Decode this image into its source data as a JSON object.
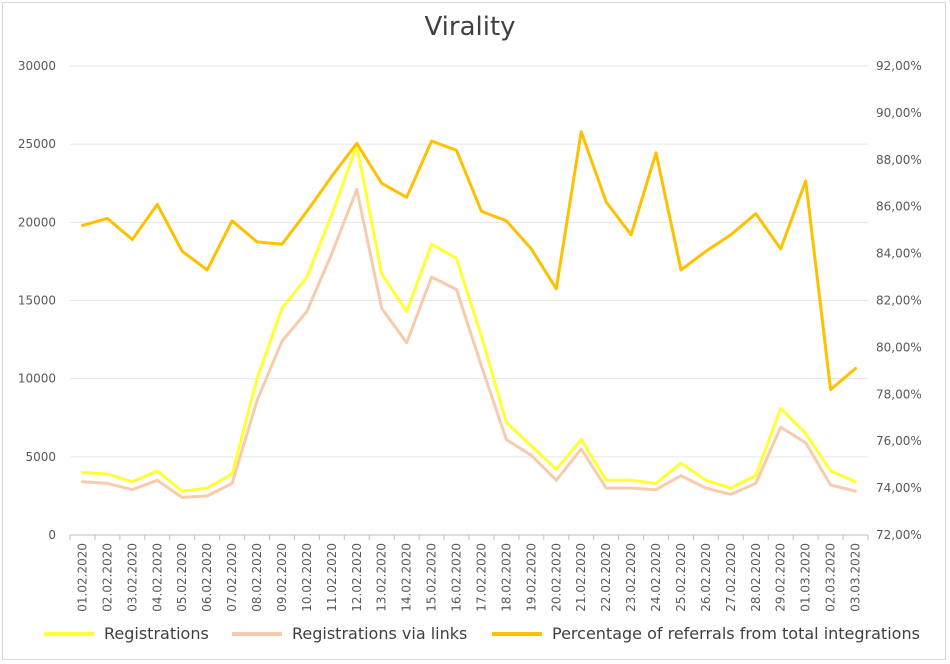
{
  "chart_data": {
    "type": "line",
    "title": "Virality",
    "categories": [
      "01.02.2020",
      "02.02.2020",
      "03.02.2020",
      "04.02.2020",
      "05.02.2020",
      "06.02.2020",
      "07.02.2020",
      "08.02.2020",
      "09.02.2020",
      "10.02.2020",
      "11.02.2020",
      "12.02.2020",
      "13.02.2020",
      "14.02.2020",
      "15.02.2020",
      "16.02.2020",
      "17.02.2020",
      "18.02.2020",
      "19.02.2020",
      "20.02.2020",
      "21.02.2020",
      "22.02.2020",
      "23.02.2020",
      "24.02.2020",
      "25.02.2020",
      "26.02.2020",
      "27.02.2020",
      "28.02.2020",
      "29.02.2020",
      "01.03.2020",
      "02.03.2020",
      "03.03.2020"
    ],
    "left_axis": {
      "min": 0,
      "max": 30000,
      "ticks": [
        "0",
        "5000",
        "10000",
        "15000",
        "20000",
        "25000",
        "30000"
      ]
    },
    "right_axis": {
      "min": 72,
      "max": 92,
      "unit": "%",
      "ticks": [
        "72,00%",
        "74,00%",
        "76,00%",
        "78,00%",
        "80,00%",
        "82,00%",
        "84,00%",
        "86,00%",
        "88,00%",
        "90,00%",
        "92,00%"
      ]
    },
    "grid": "horizontal",
    "legend_position": "bottom",
    "series": [
      {
        "name": "Registrations",
        "axis": "left",
        "color": "#ffff33",
        "values": [
          4000,
          3900,
          3400,
          4100,
          2800,
          3000,
          3900,
          10000,
          14500,
          16500,
          20500,
          24900,
          16700,
          14300,
          18600,
          17700,
          12700,
          7200,
          5700,
          4200,
          6100,
          3500,
          3500,
          3300,
          4600,
          3500,
          3000,
          3800,
          8100,
          6500,
          4100,
          3400
        ]
      },
      {
        "name": "Registrations via links",
        "axis": "left",
        "color": "#f8cbad",
        "values": [
          3400,
          3300,
          2900,
          3500,
          2400,
          2500,
          3300,
          8600,
          12400,
          14300,
          18000,
          22100,
          14500,
          12300,
          16500,
          15700,
          10800,
          6100,
          5100,
          3500,
          5500,
          3000,
          3000,
          2900,
          3800,
          3000,
          2600,
          3300,
          6900,
          5900,
          3200,
          2800
        ]
      },
      {
        "name": "Percentage of referrals from total integrations",
        "axis": "right",
        "color": "#ffc000",
        "values": [
          85.2,
          85.5,
          84.6,
          86.1,
          84.1,
          83.3,
          85.4,
          84.5,
          84.4,
          85.8,
          87.3,
          88.7,
          87.0,
          86.4,
          88.8,
          88.4,
          85.8,
          85.4,
          84.2,
          82.5,
          89.2,
          86.2,
          84.8,
          88.3,
          83.3,
          84.1,
          84.8,
          85.7,
          84.2,
          87.1,
          78.2,
          79.1
        ]
      }
    ]
  }
}
